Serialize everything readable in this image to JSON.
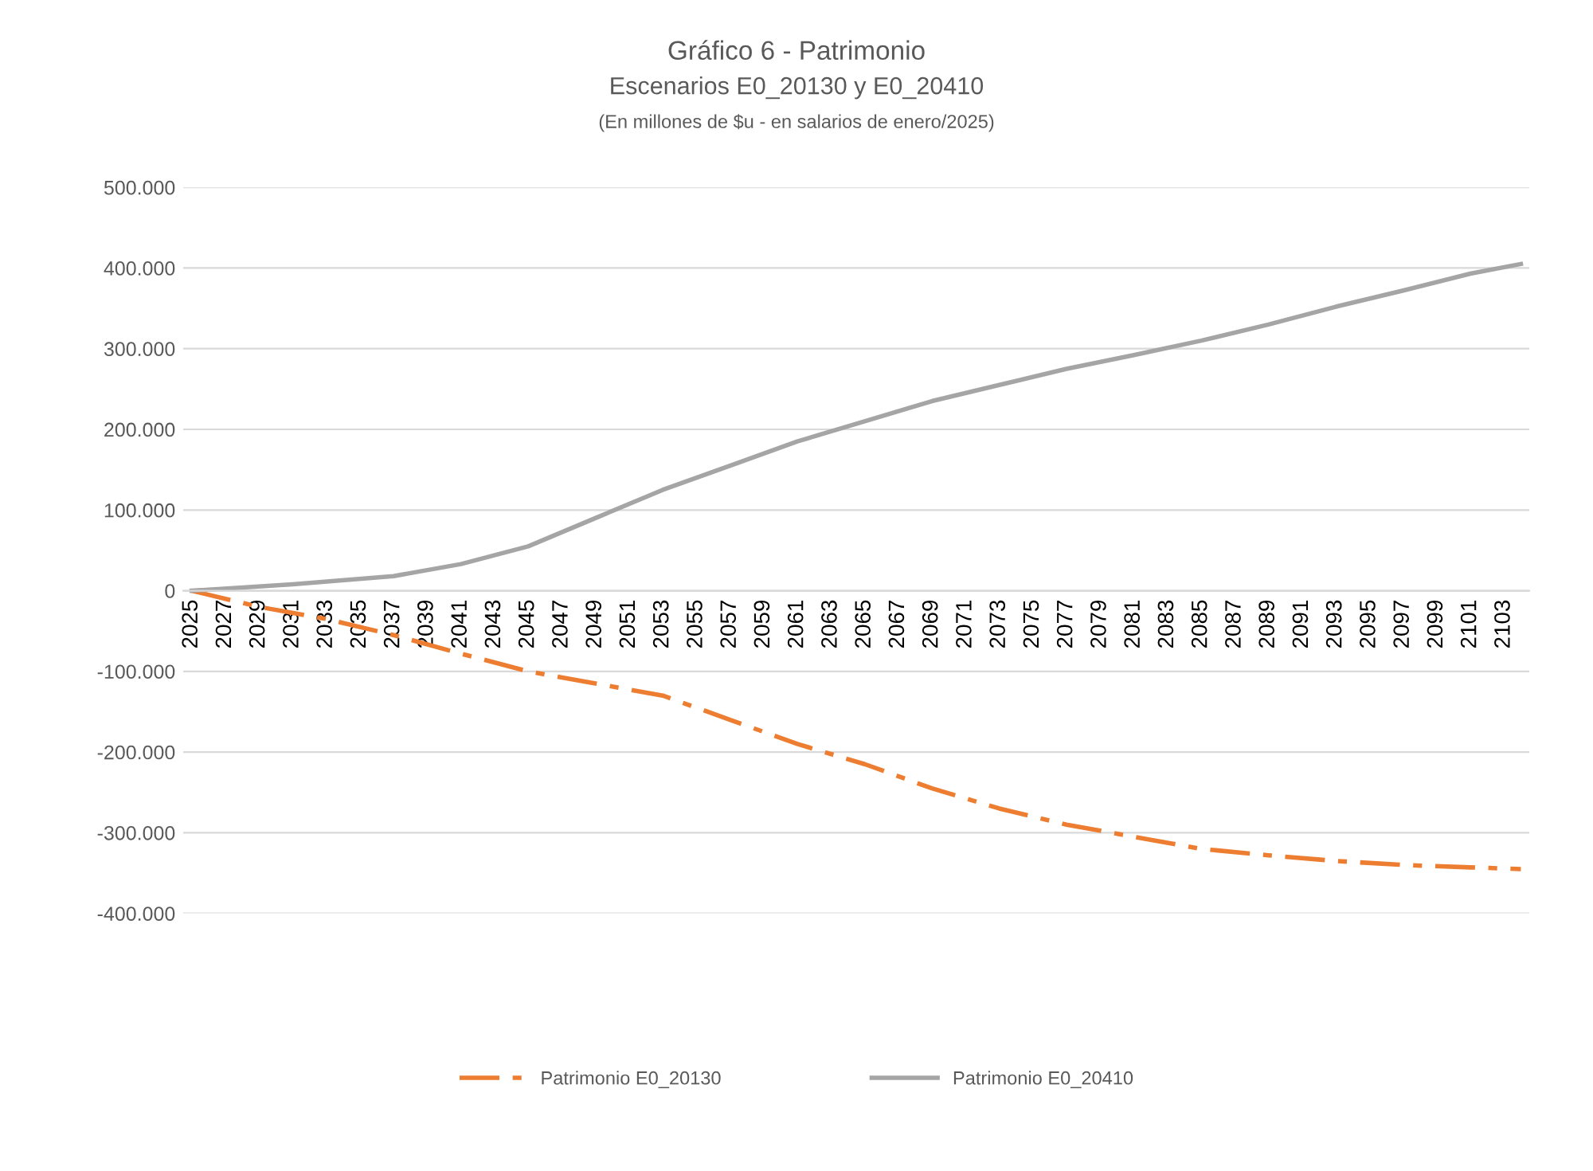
{
  "chart_data": {
    "type": "line",
    "title": "Gráfico 6 - Patrimonio",
    "subtitle": "Escenarios E0_20130 y E0_20410\n(En millones de $u - en salarios de enero/2025)",
    "series": [
      {
        "name": "Patrimonio E0_20130",
        "color": "#ed7d31",
        "line_style": "dashed",
        "x": [
          2025,
          2029,
          2033,
          2037,
          2041,
          2045,
          2049,
          2053,
          2057,
          2061,
          2065,
          2069,
          2073,
          2077,
          2081,
          2085,
          2089,
          2093,
          2097,
          2101,
          2104
        ],
        "values": [
          0,
          -20000,
          -35000,
          -55000,
          -78000,
          -100000,
          -115000,
          -130000,
          -160000,
          -190000,
          -215000,
          -245000,
          -270000,
          -290000,
          -305000,
          -320000,
          -328000,
          -335000,
          -340000,
          -343000,
          -345000
        ]
      },
      {
        "name": "Patrimonio E0_20410",
        "color": "#a5a5a5",
        "line_style": "solid",
        "x": [
          2025,
          2031,
          2037,
          2041,
          2045,
          2049,
          2053,
          2057,
          2061,
          2065,
          2069,
          2073,
          2077,
          2081,
          2085,
          2089,
          2093,
          2097,
          2101,
          2104
        ],
        "values": [
          0,
          8000,
          18000,
          33000,
          55000,
          90000,
          125000,
          155000,
          185000,
          210000,
          235000,
          255000,
          275000,
          292000,
          310000,
          330000,
          352000,
          372000,
          393000,
          405000
        ]
      }
    ],
    "xlim": [
      2024.5,
      2104.5
    ],
    "xticks": [
      2025,
      2027,
      2029,
      2031,
      2033,
      2035,
      2037,
      2039,
      2041,
      2043,
      2045,
      2047,
      2049,
      2051,
      2053,
      2055,
      2057,
      2059,
      2061,
      2063,
      2065,
      2067,
      2069,
      2071,
      2073,
      2075,
      2077,
      2079,
      2081,
      2083,
      2085,
      2087,
      2089,
      2091,
      2093,
      2095,
      2097,
      2099,
      2101,
      2103
    ],
    "ylim": [
      -400000,
      500000
    ],
    "yticks": [
      {
        "value": -400000,
        "label": "-400.000"
      },
      {
        "value": -300000,
        "label": "-300.000"
      },
      {
        "value": -200000,
        "label": "-200.000"
      },
      {
        "value": -100000,
        "label": "-100.000"
      },
      {
        "value": 0,
        "label": "0"
      },
      {
        "value": 100000,
        "label": "100.000"
      },
      {
        "value": 200000,
        "label": "200.000"
      },
      {
        "value": 300000,
        "label": "300.000"
      },
      {
        "value": 400000,
        "label": "400.000"
      },
      {
        "value": 500000,
        "label": "500.000"
      }
    ],
    "grid": "y",
    "legend": "bottom"
  }
}
